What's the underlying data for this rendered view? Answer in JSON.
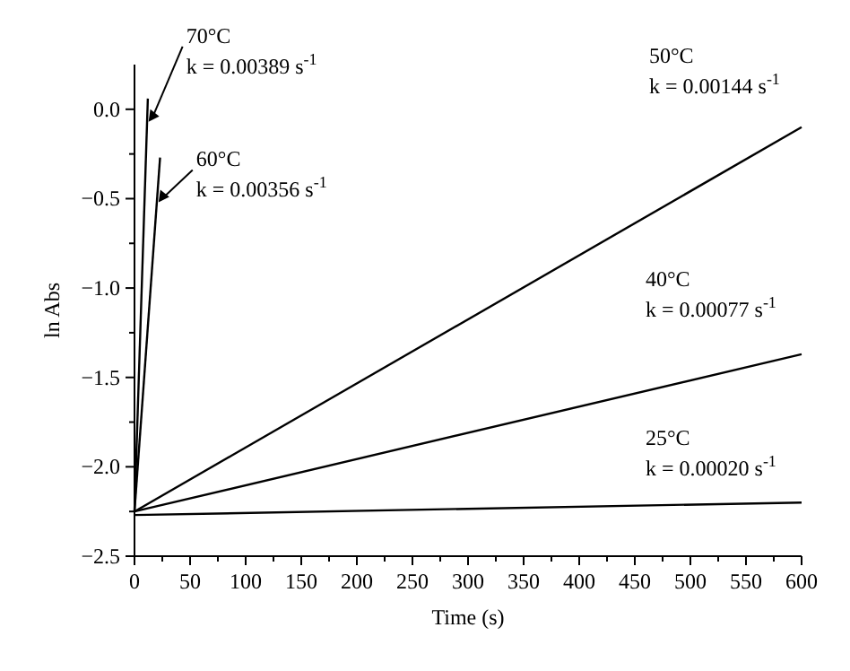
{
  "chart_data": {
    "type": "line",
    "xlabel": "Time (s)",
    "ylabel": "ln Abs",
    "xlim": [
      0,
      600
    ],
    "ylim": [
      -2.5,
      0.25
    ],
    "xticks": [
      0,
      {
        "value": 25,
        "label": null
      },
      50,
      {
        "value": 75,
        "label": null
      },
      100,
      {
        "value": 125,
        "label": null
      },
      150,
      {
        "value": 175,
        "label": null
      },
      200,
      {
        "value": 225,
        "label": null
      },
      250,
      {
        "value": 275,
        "label": null
      },
      300,
      {
        "value": 325,
        "label": null
      },
      350,
      {
        "value": 375,
        "label": null
      },
      400,
      {
        "value": 425,
        "label": null
      },
      450,
      {
        "value": 475,
        "label": null
      },
      500,
      {
        "value": 525,
        "label": null
      },
      550,
      {
        "value": 575,
        "label": null
      },
      600
    ],
    "yticks": [
      {
        "value": -2.5,
        "label": "−2.5"
      },
      {
        "value": -2.25,
        "label": null
      },
      {
        "value": -2,
        "label": "−2.0"
      },
      {
        "value": -1.75,
        "label": null
      },
      {
        "value": -1.5,
        "label": "−1.5"
      },
      {
        "value": -1.25,
        "label": null
      },
      {
        "value": -1,
        "label": "−1.0"
      },
      {
        "value": -0.75,
        "label": null
      },
      {
        "value": -0.5,
        "label": "−0.5"
      },
      {
        "value": -0.25,
        "label": null
      },
      {
        "value": 0,
        "label": "0.0"
      }
    ],
    "grid": false,
    "marker": "none",
    "line_style": "solid",
    "series": [
      {
        "color": "#000000",
        "x": [
          0,
          600
        ],
        "values": [
          -2.27,
          -2.2
        ]
      },
      {
        "color": "#000000",
        "x": [
          0,
          600
        ],
        "values": [
          -2.25,
          -1.37
        ]
      },
      {
        "color": "#000000",
        "x": [
          0,
          600
        ],
        "values": [
          -2.25,
          -0.1
        ]
      },
      {
        "color": "#000000",
        "x": [
          0,
          23
        ],
        "values": [
          -2.25,
          -0.27
        ]
      },
      {
        "color": "#000000",
        "x": [
          0,
          12
        ],
        "values": [
          -2.25,
          0.06
        ]
      }
    ],
    "annotations": [
      {
        "text": "70°C\nk = 0.00389 s$^{-1}$",
        "x": 11,
        "y": -0.07
      },
      {
        "text": "60°C\nk = 0.00356 s$^{-1}$",
        "x": 20,
        "y": -0.52
      },
      {
        "text": "50°C\nk = 0.00144 s$^{-1}$",
        "x": 600,
        "y": -0.1
      },
      {
        "text": "40°C\nk = 0.00077 s$^{-1}$",
        "x": 600,
        "y": -1.37
      },
      {
        "text": "25°C\nk = 0.00020 s$^{-1}$",
        "x": 600,
        "y": -2.2
      }
    ]
  }
}
